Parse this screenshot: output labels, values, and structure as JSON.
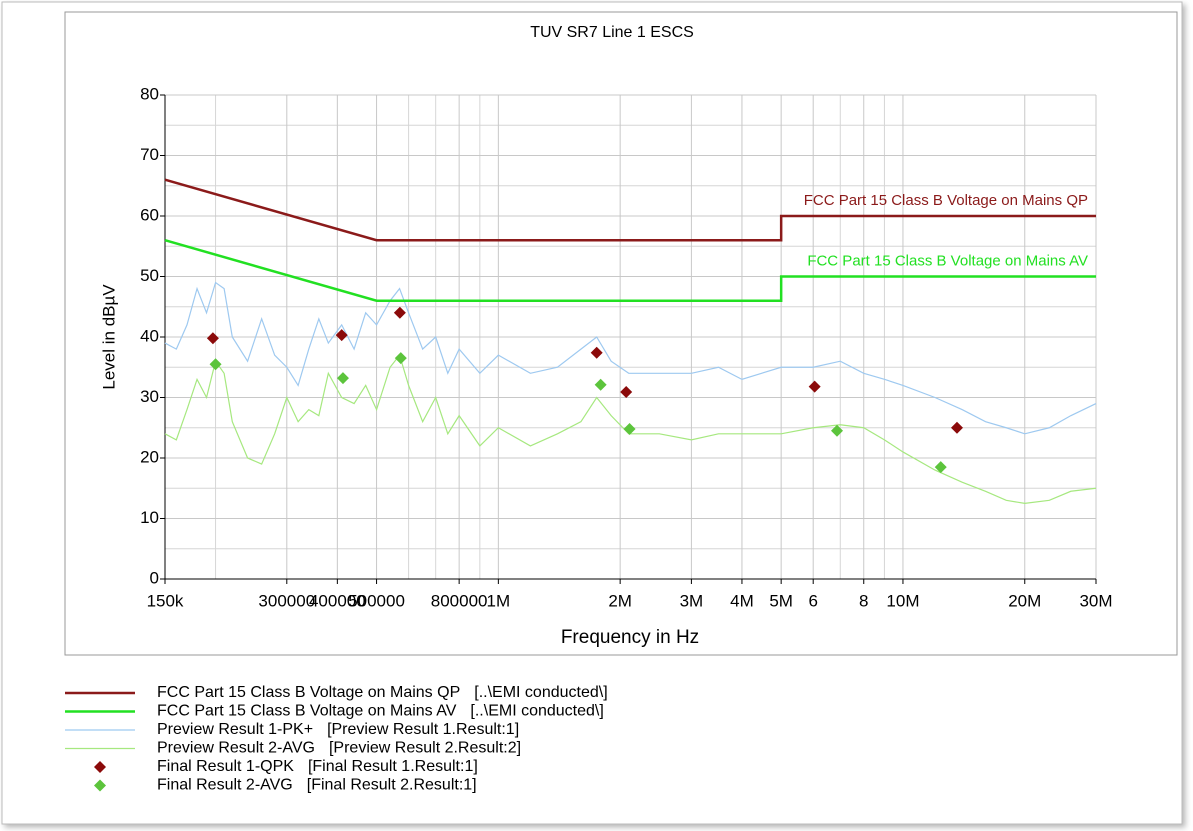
{
  "chart_data": {
    "type": "line",
    "title": "TUV SR7 Line 1 ESCS",
    "xlabel": "Frequency in Hz",
    "ylabel": "Level in dBµV",
    "xscale": "log",
    "grid": true,
    "xlim": [
      150000,
      30000000
    ],
    "ylim": [
      0,
      80
    ],
    "xticks": [
      {
        "value": 150000,
        "label": "150k"
      },
      300000,
      400000,
      500000,
      800000,
      {
        "value": 1000000,
        "label": "1M"
      },
      {
        "value": 2000000,
        "label": "2M"
      },
      {
        "value": 3000000,
        "label": "3M"
      },
      {
        "value": 4000000,
        "label": "4M"
      },
      {
        "value": 5000000,
        "label": "5M"
      },
      {
        "value": 6000000,
        "label": "6"
      },
      {
        "value": 8000000,
        "label": "8"
      },
      {
        "value": 10000000,
        "label": "10M"
      },
      {
        "value": 20000000,
        "label": "20M"
      },
      {
        "value": 30000000,
        "label": "30M"
      }
    ],
    "xgrid_minor": [
      200000,
      600000,
      700000,
      900000,
      7000000,
      9000000
    ],
    "yticks": [
      0,
      10,
      20,
      30,
      40,
      50,
      60,
      70,
      80
    ],
    "ygrid_minor": [
      5,
      15,
      25,
      35,
      45,
      55,
      65,
      75
    ],
    "series": [
      {
        "name": "FCC Part 15 Class B Voltage on Mains QP",
        "source": "[..\\EMI conducted\\]",
        "color": "#8b1a1a",
        "mode": "limit",
        "x": [
          150000,
          500000,
          5000000,
          5000000,
          30000000
        ],
        "values": [
          66,
          56,
          56,
          60,
          60
        ]
      },
      {
        "name": "FCC Part 15 Class B Voltage on Mains AV",
        "source": "[..\\EMI conducted\\]",
        "color": "#22e022",
        "mode": "limit",
        "x": [
          150000,
          500000,
          5000000,
          5000000,
          30000000
        ],
        "values": [
          56,
          46,
          46,
          50,
          50
        ]
      },
      {
        "name": "Preview Result 1-PK+",
        "source": "[Preview Result 1.Result:1]",
        "color": "#9ec9f0",
        "mode": "trace",
        "x": [
          150000,
          160000,
          170000,
          180000,
          190000,
          200000,
          210000,
          220000,
          240000,
          260000,
          280000,
          300000,
          320000,
          340000,
          360000,
          380000,
          410000,
          440000,
          470000,
          500000,
          540000,
          570000,
          600000,
          650000,
          700000,
          750000,
          800000,
          900000,
          1000000,
          1200000,
          1400000,
          1600000,
          1750000,
          1900000,
          2100000,
          2500000,
          3000000,
          3500000,
          4000000,
          5000000,
          6000000,
          7000000,
          8000000,
          9000000,
          10000000,
          12000000,
          14000000,
          16000000,
          18000000,
          20000000,
          23000000,
          26000000,
          30000000
        ],
        "values": [
          39,
          38,
          42,
          48,
          44,
          49,
          48,
          40,
          36,
          43,
          37,
          35,
          32,
          38,
          43,
          39,
          42,
          38,
          44,
          42,
          46,
          48,
          44,
          38,
          40,
          34,
          38,
          34,
          37,
          34,
          35,
          38,
          40,
          36,
          34,
          34,
          34,
          35,
          33,
          35,
          35,
          36,
          34,
          33,
          32,
          30,
          28,
          26,
          25,
          24,
          25,
          27,
          29
        ]
      },
      {
        "name": "Preview Result 2-AVG",
        "source": "[Preview Result 2.Result:2]",
        "color": "#a6e87f",
        "mode": "trace",
        "x": [
          150000,
          160000,
          170000,
          180000,
          190000,
          200000,
          210000,
          220000,
          240000,
          260000,
          280000,
          300000,
          320000,
          340000,
          360000,
          380000,
          410000,
          440000,
          470000,
          500000,
          540000,
          570000,
          600000,
          650000,
          700000,
          750000,
          800000,
          900000,
          1000000,
          1200000,
          1400000,
          1600000,
          1750000,
          1900000,
          2100000,
          2500000,
          3000000,
          3500000,
          4000000,
          5000000,
          6000000,
          7000000,
          8000000,
          9000000,
          10000000,
          12000000,
          14000000,
          16000000,
          18000000,
          20000000,
          23000000,
          26000000,
          30000000
        ],
        "values": [
          24,
          23,
          28,
          33,
          30,
          36,
          34,
          26,
          20,
          19,
          24,
          30,
          26,
          28,
          27,
          34,
          30,
          29,
          32,
          28,
          35,
          37,
          32,
          26,
          30,
          24,
          27,
          22,
          25,
          22,
          24,
          26,
          30,
          27,
          24,
          24,
          23,
          24,
          24,
          24,
          25,
          25.5,
          25,
          23,
          21,
          18,
          16,
          14.5,
          13,
          12.5,
          13,
          14.5,
          15
        ]
      },
      {
        "name": "Final Result 1-QPK",
        "source": "[Final Result 1.Result:1]",
        "color": "#8b0a0a",
        "mode": "markers",
        "x": [
          197000,
          410000,
          571000,
          1750000,
          2070000,
          6050000,
          13600000
        ],
        "values": [
          39.8,
          40.3,
          44,
          37.4,
          30.9,
          31.8,
          25
        ]
      },
      {
        "name": "Final Result 2-AVG",
        "source": "[Final Result 2.Result:1]",
        "color": "#5cc43c",
        "mode": "markers",
        "x": [
          200000,
          413000,
          574000,
          1790000,
          2110000,
          6870000,
          12400000
        ],
        "values": [
          35.5,
          33.2,
          36.5,
          32.1,
          24.8,
          24.5,
          18.5
        ]
      }
    ]
  }
}
